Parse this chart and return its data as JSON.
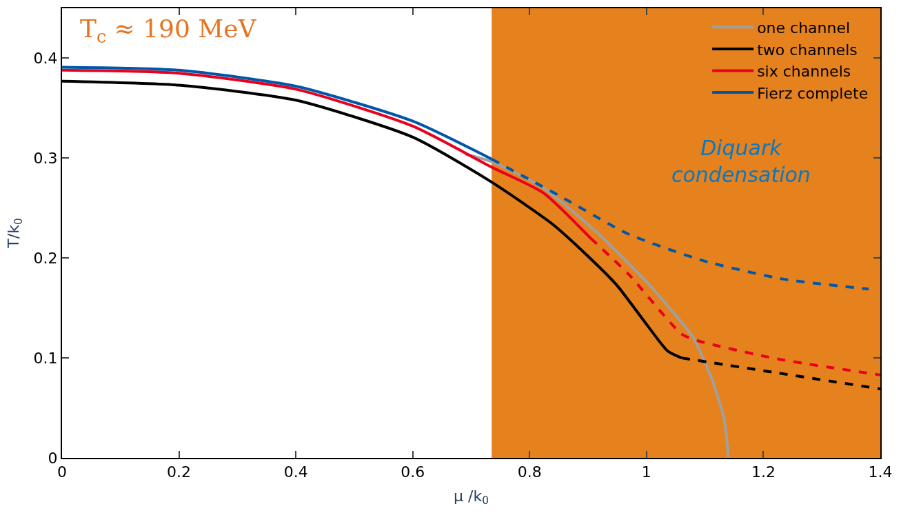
{
  "chart_data": {
    "type": "line",
    "xlabel": "μ /k$_{0}$",
    "ylabel": "T/k$_{0}$",
    "xlim": [
      0,
      1.4
    ],
    "xticks": [
      0,
      0.2,
      0.4,
      0.6,
      0.8,
      1,
      1.2,
      1.4
    ],
    "ylim": [
      0,
      0.45
    ],
    "yticks": [
      0,
      0.1,
      0.2,
      0.3,
      0.4
    ],
    "grid": false,
    "legend": "top right",
    "marker": "none",
    "bands": [
      {
        "axis": "x",
        "from": 0.735,
        "to": 1.4,
        "color": "#e6821e"
      }
    ],
    "annotations": [
      "T$_{c}$ ≈ 190 MeV",
      "Diquark\ncondensation"
    ],
    "series": [
      {
        "name": "one channel",
        "color": "#a0a0a0",
        "line_style": "solid",
        "x": [
          0.69,
          0.737,
          0.824,
          0.92,
          1.008,
          1.079,
          1.113,
          1.133,
          1.14
        ],
        "values": [
          0.304,
          0.296,
          0.27,
          0.223,
          0.171,
          0.121,
          0.077,
          0.038,
          0
        ]
      },
      {
        "name": "two channels",
        "color": "#000000",
        "line_style": "solid",
        "x": [
          0,
          0.2,
          0.4,
          0.6,
          0.735,
          0.839,
          0.896,
          0.949,
          0.992,
          1.036,
          1.06
        ],
        "values": [
          0.377,
          0.373,
          0.358,
          0.321,
          0.276,
          0.234,
          0.204,
          0.173,
          0.14,
          0.107,
          0.1
        ]
      },
      {
        "color": "#000000",
        "line_style": "dashed",
        "x": [
          1.06,
          1.224,
          1.4
        ],
        "values": [
          0.1,
          0.085,
          0.069
        ]
      },
      {
        "name": "six channels",
        "color": "#e8001c",
        "line_style": "solid",
        "x": [
          0,
          0.2,
          0.4,
          0.6,
          0.735,
          0.824,
          0.904
        ],
        "values": [
          0.388,
          0.385,
          0.369,
          0.332,
          0.291,
          0.265,
          0.22
        ]
      },
      {
        "color": "#e8001c",
        "line_style": "dashed",
        "x": [
          0.904,
          0.969,
          1.06,
          1.089,
          1.224,
          1.4
        ],
        "values": [
          0.22,
          0.184,
          0.124,
          0.117,
          0.099,
          0.083
        ]
      },
      {
        "name": "Fierz complete",
        "color": "#0057a8",
        "line_style": "solid",
        "x": [
          0,
          0.2,
          0.4,
          0.6,
          0.735
        ],
        "values": [
          0.391,
          0.388,
          0.372,
          0.337,
          0.299
        ]
      },
      {
        "color": "#0057a8",
        "line_style": "dashed",
        "x": [
          0.735,
          0.849,
          0.969,
          1.099,
          1.233,
          1.38
        ],
        "values": [
          0.299,
          0.263,
          0.224,
          0.197,
          0.179,
          0.169
        ]
      }
    ]
  }
}
